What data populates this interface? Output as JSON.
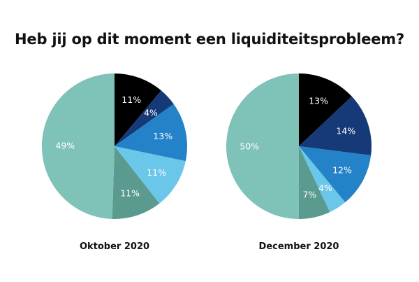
{
  "chart_data": {
    "title": "Heb jij op dit moment een liquiditeitsprobleem?",
    "charts": [
      {
        "type": "pie",
        "title": "Oktober 2020",
        "slices": [
          {
            "value": 11,
            "label": "11%",
            "color": "#000000"
          },
          {
            "value": 4,
            "label": "4%",
            "color": "#163a78"
          },
          {
            "value": 13,
            "label": "13%",
            "color": "#2482c8"
          },
          {
            "value": 11,
            "label": "11%",
            "color": "#6ac7ea"
          },
          {
            "value": 11,
            "label": "11%",
            "color": "#5b9a8e"
          },
          {
            "value": 49,
            "label": "49%",
            "color": "#7ec2b8"
          }
        ]
      },
      {
        "type": "pie",
        "title": "December 2020",
        "slices": [
          {
            "value": 13,
            "label": "13%",
            "color": "#000000"
          },
          {
            "value": 14,
            "label": "14%",
            "color": "#163a78"
          },
          {
            "value": 12,
            "label": "12%",
            "color": "#2482c8"
          },
          {
            "value": 4,
            "label": "4%",
            "color": "#6ac7ea"
          },
          {
            "value": 7,
            "label": "7%",
            "color": "#5b9a8e"
          },
          {
            "value": 50,
            "label": "50%",
            "color": "#7ec2b8"
          }
        ]
      }
    ]
  }
}
